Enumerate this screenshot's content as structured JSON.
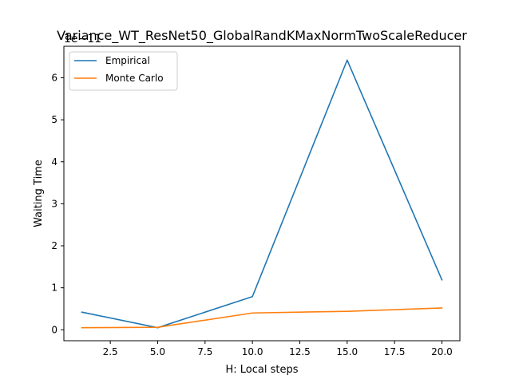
{
  "chart_data": {
    "type": "line",
    "title": "Variance_WT_ResNet50_GlobalRandKMaxNormTwoScaleReducer",
    "xlabel": "H: Local steps",
    "ylabel": "Waiting Time",
    "offset_text": "1e−11",
    "x": [
      1,
      5,
      10,
      15,
      20
    ],
    "xlim": [
      0.05,
      20.95
    ],
    "ylim": [
      -0.26,
      6.75
    ],
    "xticks": [
      2.5,
      5.0,
      7.5,
      10.0,
      12.5,
      15.0,
      17.5,
      20.0
    ],
    "xtick_labels": [
      "2.5",
      "5.0",
      "7.5",
      "10.0",
      "12.5",
      "15.0",
      "17.5",
      "20.0"
    ],
    "yticks": [
      0,
      1,
      2,
      3,
      4,
      5,
      6
    ],
    "ytick_labels": [
      "0",
      "1",
      "2",
      "3",
      "4",
      "5",
      "6"
    ],
    "grid": false,
    "legend_position": "upper left",
    "series": [
      {
        "name": "Empirical",
        "color": "#1f77b4",
        "values": [
          0.42,
          0.05,
          0.79,
          6.42,
          1.19
        ]
      },
      {
        "name": "Monte Carlo",
        "color": "#ff7f0e",
        "values": [
          0.05,
          0.06,
          0.4,
          0.44,
          0.52
        ]
      }
    ]
  }
}
